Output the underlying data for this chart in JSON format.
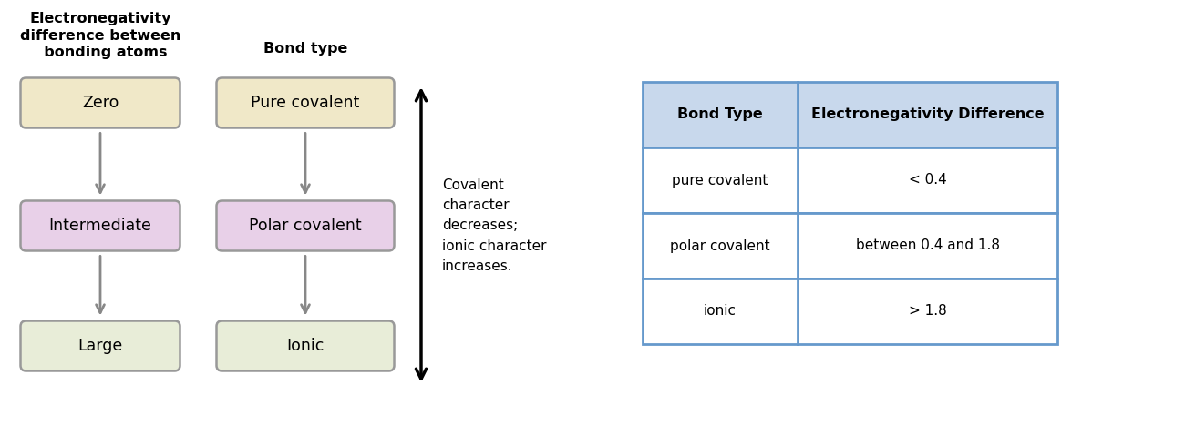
{
  "bg_color": "#ffffff",
  "left_col_header": "Electronegativity\ndifference between\n  bonding atoms",
  "right_col_header": "Bond type",
  "left_boxes": [
    "Zero",
    "Intermediate",
    "Large"
  ],
  "right_boxes": [
    "Pure covalent",
    "Polar covalent",
    "Ionic"
  ],
  "left_box_colors": [
    "#f0e8c8",
    "#e8d0e8",
    "#e8edd8"
  ],
  "right_box_colors": [
    "#f0e8c8",
    "#e8d0e8",
    "#e8edd8"
  ],
  "box_edge_color": "#999999",
  "arrow_color": "#888888",
  "arrow_text_lines": [
    "Covalent",
    "character",
    "decreases;",
    "ionic character",
    "increases."
  ],
  "table_header": [
    "Bond Type",
    "Electronegativity Difference"
  ],
  "table_rows": [
    [
      "pure covalent",
      "< 0.4"
    ],
    [
      "polar covalent",
      "between 0.4 and 1.8"
    ],
    [
      "ionic",
      "> 1.8"
    ]
  ],
  "table_header_bg": "#c8d8ec",
  "table_border_color": "#6699cc",
  "table_row_bg": "#ffffff",
  "fig_width": 13.0,
  "fig_height": 4.68,
  "dpi": 100
}
